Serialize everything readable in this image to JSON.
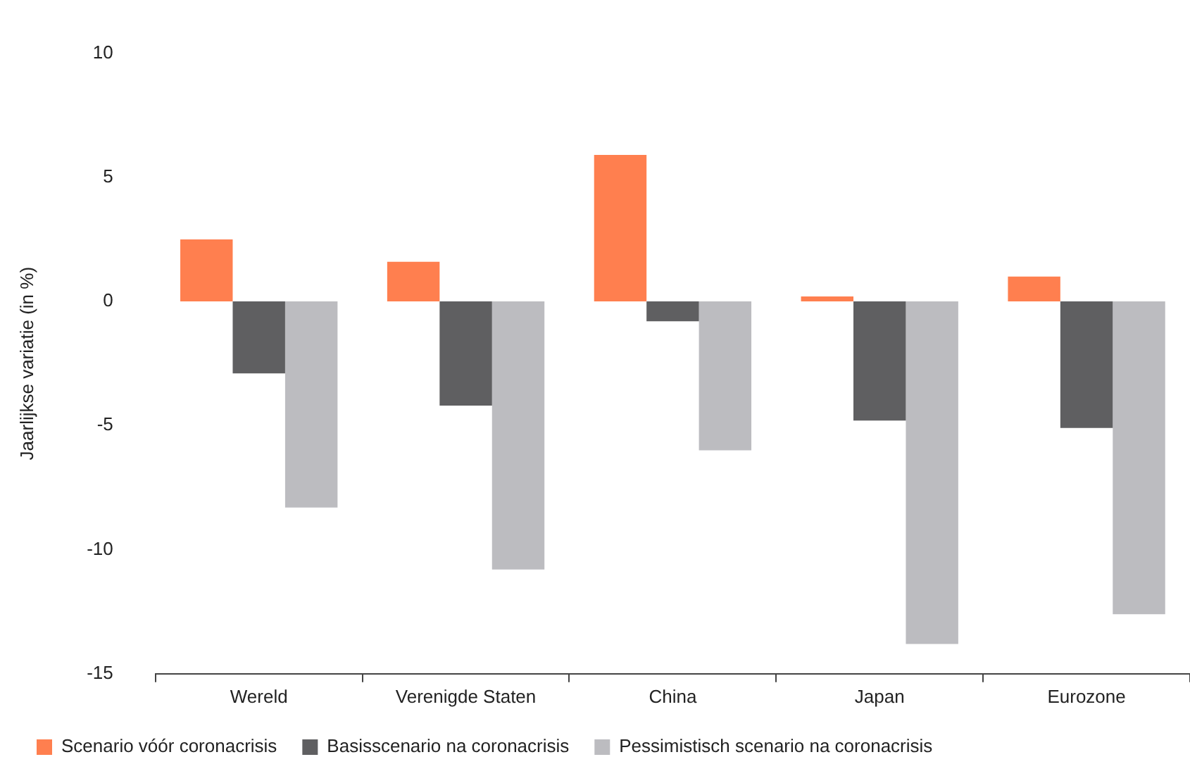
{
  "chart_data": {
    "type": "bar",
    "ylabel": "Jaarlijkse variatie (in %)",
    "categories": [
      "Wereld",
      "Verenigde Staten",
      "China",
      "Japan",
      "Eurozone"
    ],
    "series": [
      {
        "name": "Scenario vóór coronacrisis",
        "color": "#ff7f4f",
        "values": [
          2.5,
          1.6,
          5.9,
          0.2,
          1.0
        ]
      },
      {
        "name": "Basisscenario na coronacrisis",
        "color": "#5f5f61",
        "values": [
          -2.9,
          -4.2,
          -0.8,
          -4.8,
          -5.1
        ]
      },
      {
        "name": "Pessimistisch scenario na coronacrisis",
        "color": "#bcbcc0",
        "values": [
          -8.3,
          -10.8,
          -6.0,
          -13.8,
          -12.6
        ]
      }
    ],
    "ylim": [
      -15,
      10
    ],
    "yticks": [
      -15,
      -10,
      -5,
      0,
      5,
      10
    ],
    "grid": false,
    "legend": "bottom"
  }
}
